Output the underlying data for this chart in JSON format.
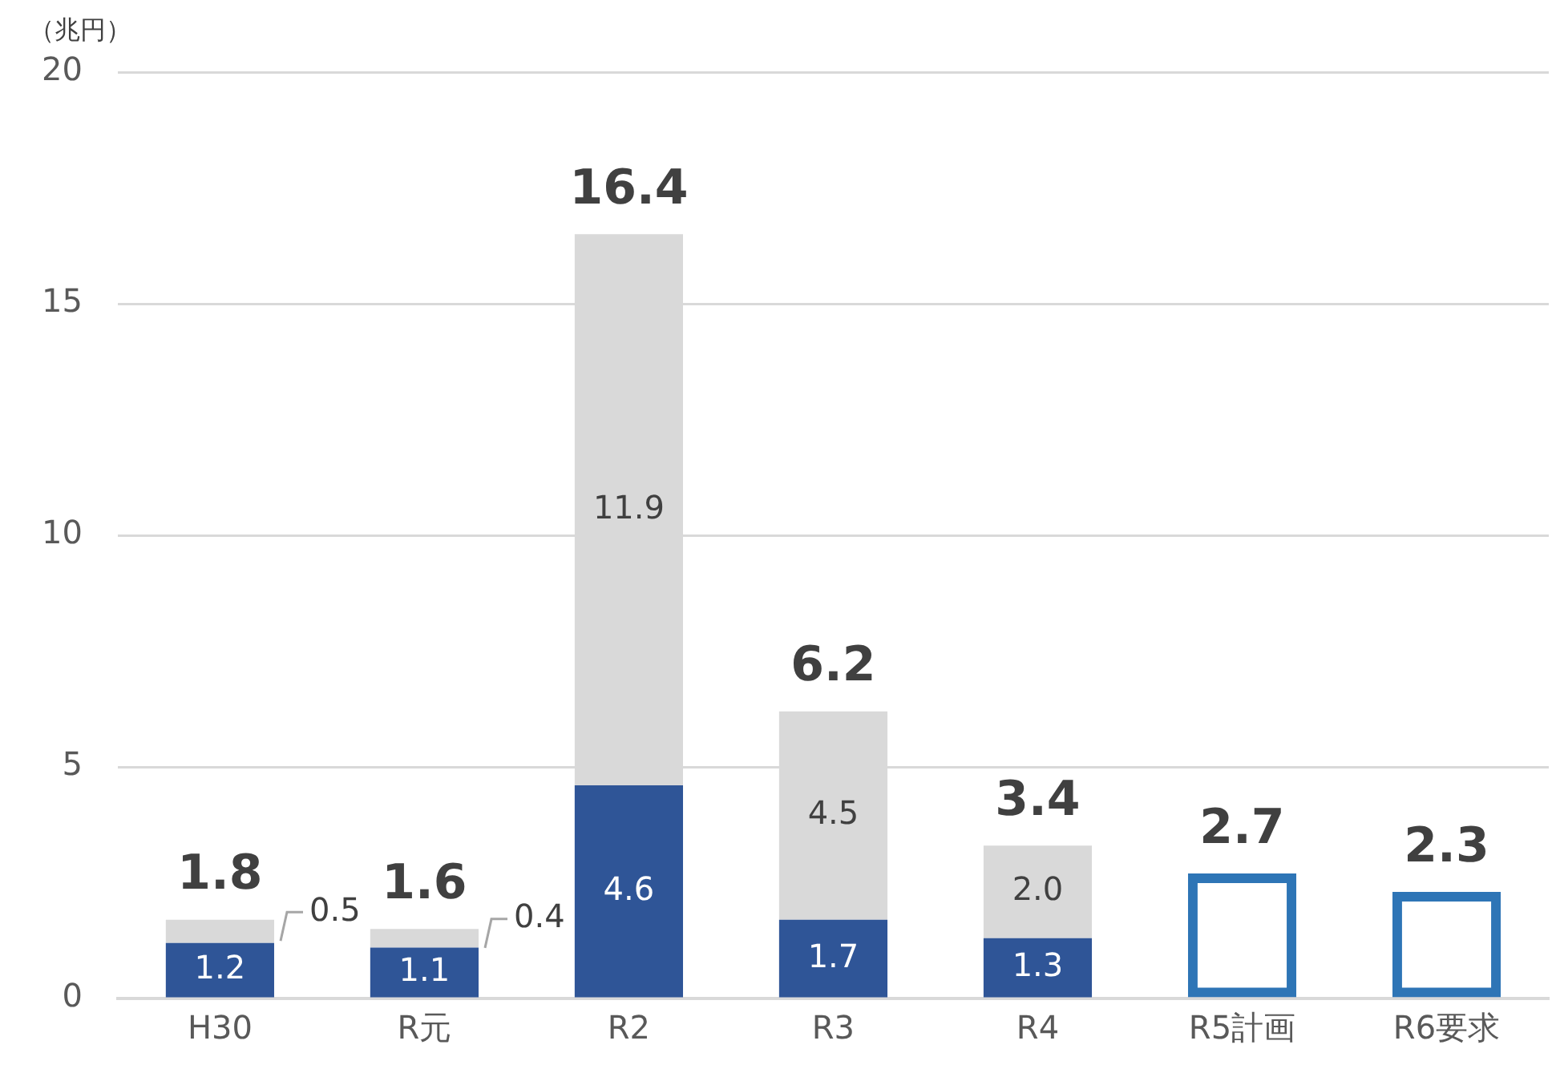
{
  "chart_data": {
    "type": "bar",
    "stacked": true,
    "ylabel": "（兆円）",
    "categories": [
      "H30",
      "R元",
      "R2",
      "R3",
      "R4",
      "R5計画",
      "R6要求"
    ],
    "series": [
      {
        "color": "#2f5597",
        "values": [
          1.2,
          1.1,
          4.6,
          1.7,
          1.3,
          null,
          null
        ],
        "value_labels": [
          "1.2",
          "1.1",
          "4.6",
          "1.7",
          "1.3",
          null,
          null
        ]
      },
      {
        "color": "#d9d9d9",
        "values": [
          0.5,
          0.4,
          11.9,
          4.5,
          2.0,
          null,
          null
        ],
        "value_labels": [
          "0.5",
          "0.4",
          "11.9",
          "4.5",
          "2.0",
          null,
          null
        ]
      },
      {
        "color": "#2e75b6",
        "values": [
          null,
          null,
          null,
          null,
          null,
          2.7,
          2.3
        ]
      }
    ],
    "totals": [
      "1.8",
      "1.6",
      "16.4",
      "6.2",
      "3.4",
      "2.7",
      "2.3"
    ],
    "ylim": [
      0,
      20
    ],
    "yticks": [
      0,
      5,
      10,
      15,
      20
    ],
    "grid": "y",
    "legend": false
  }
}
